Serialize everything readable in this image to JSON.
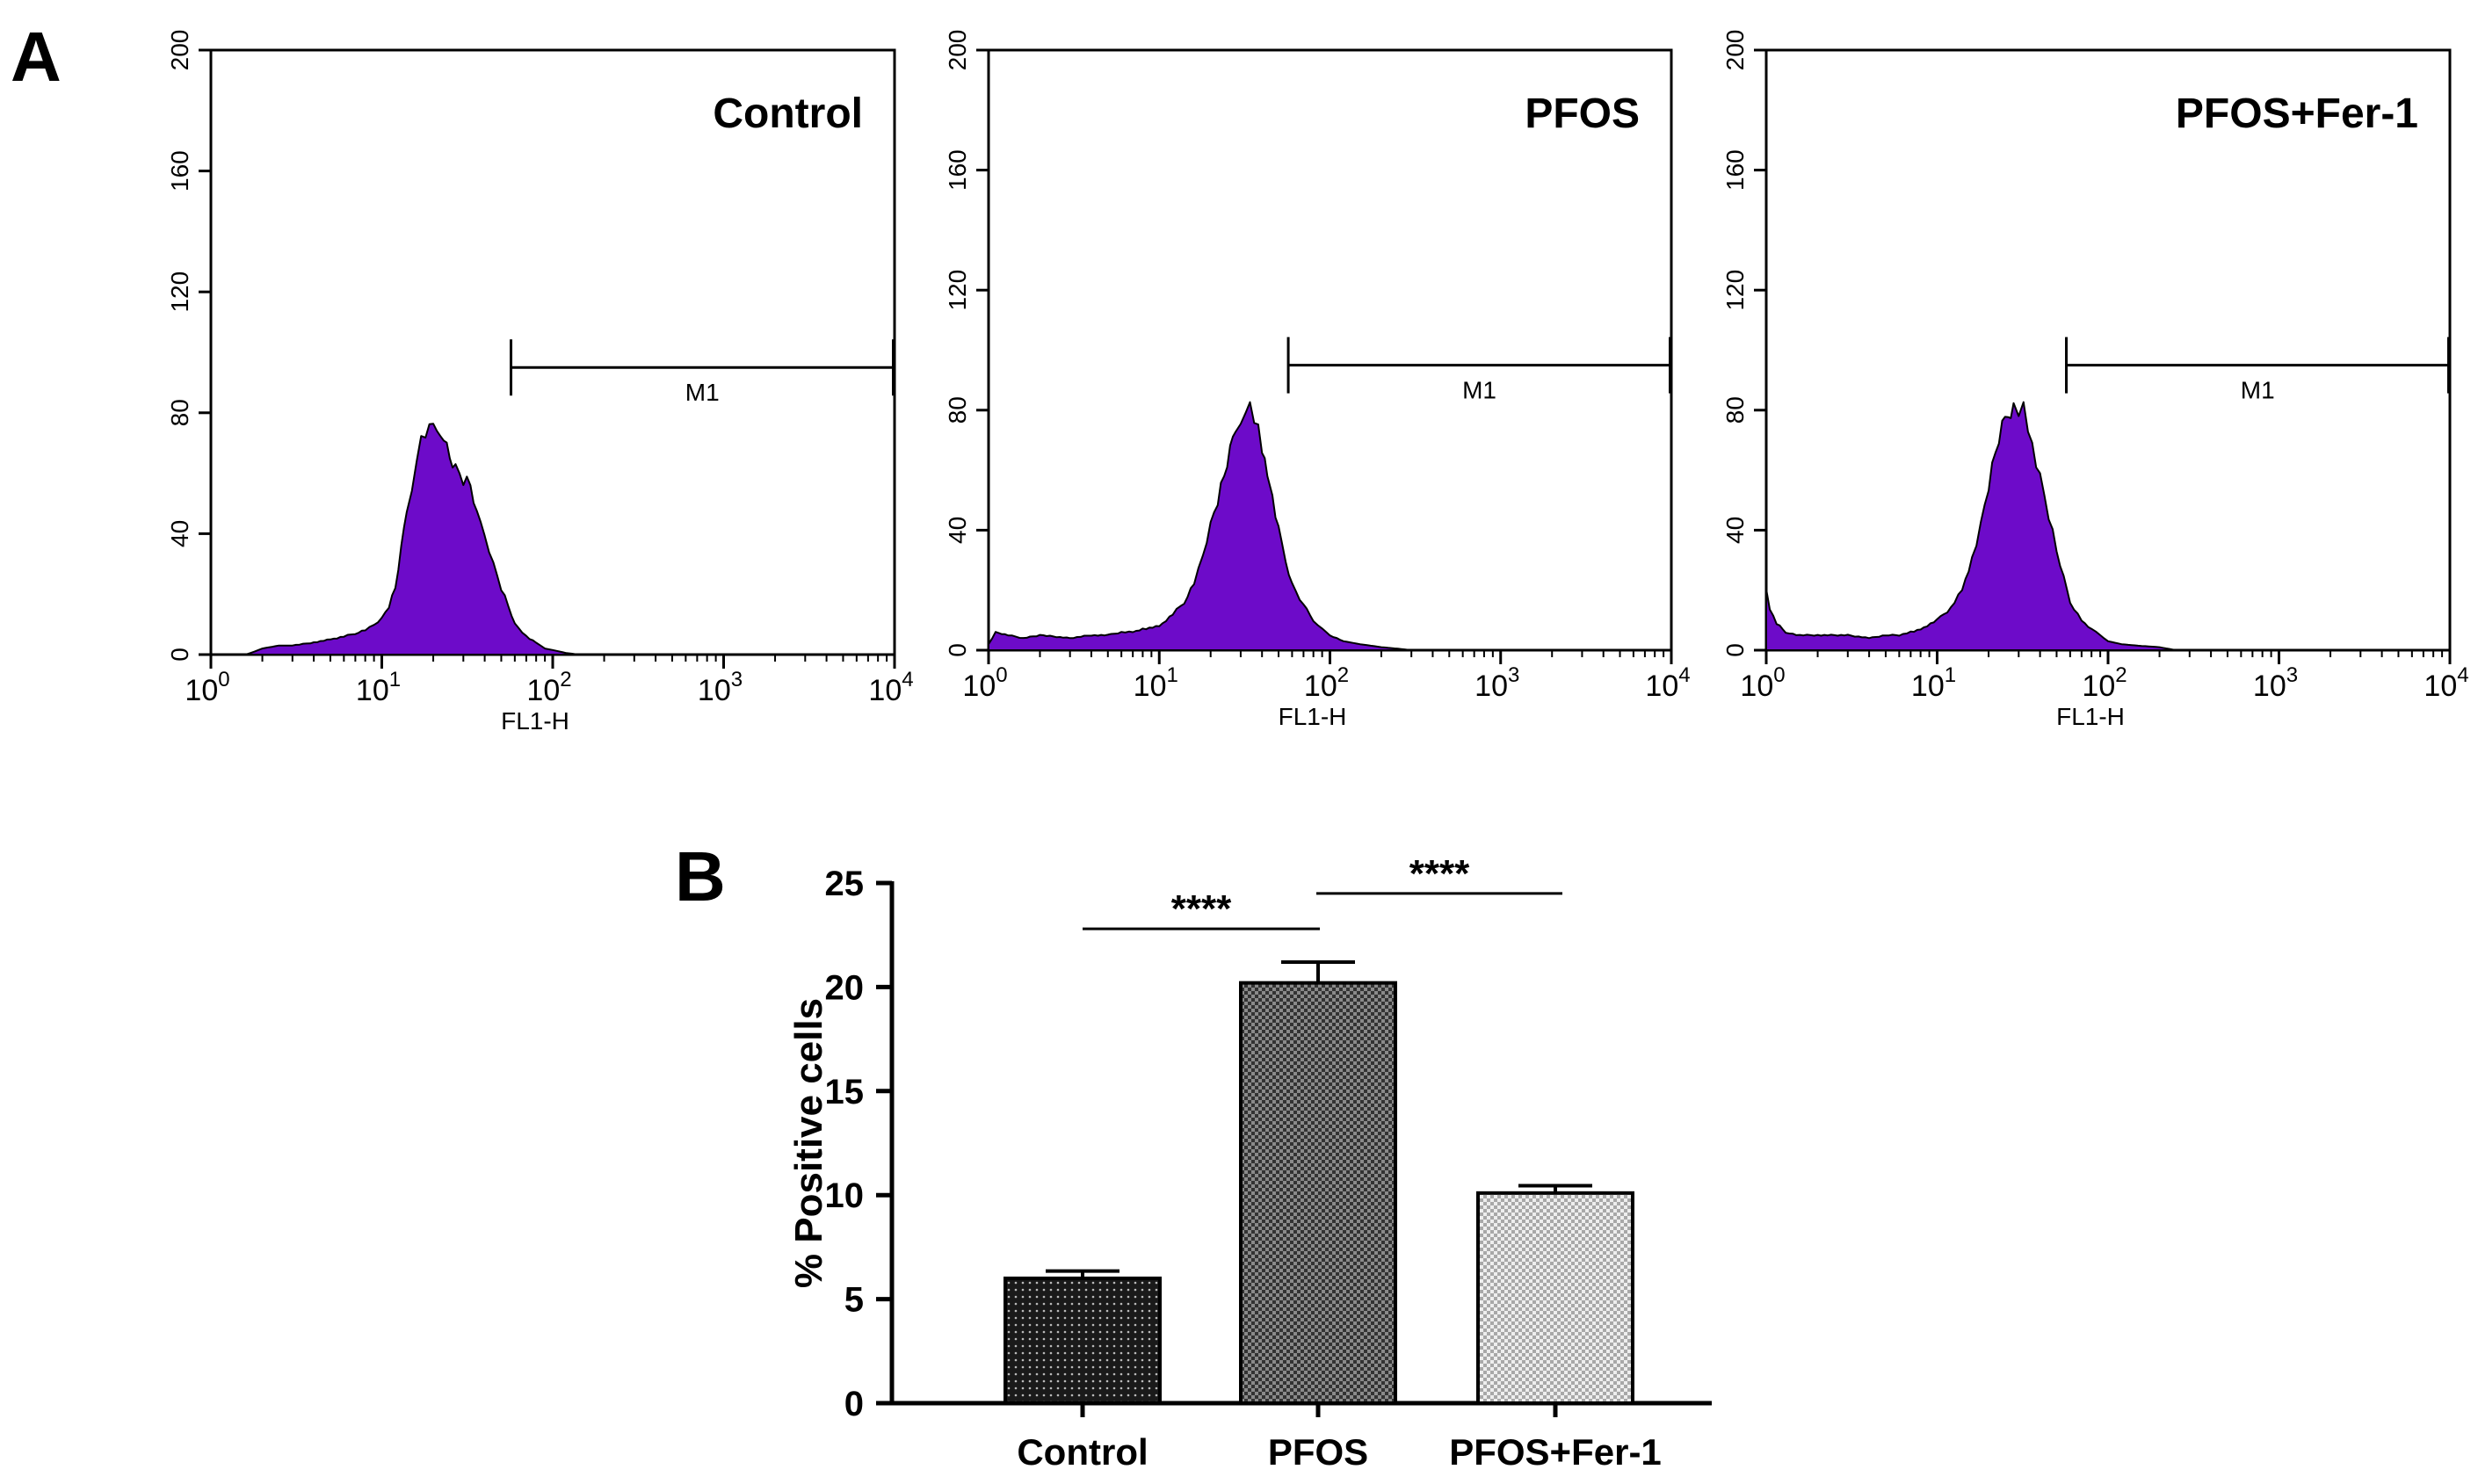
{
  "figure": {
    "panel_a_label": "A",
    "panel_b_label": "B"
  },
  "colors": {
    "histogram_fill": "#6d0bc9",
    "histogram_edge": "#000000",
    "axis": "#000000",
    "background": "#ffffff",
    "bar_control": "#1a1a1a",
    "bar_pfos": "#555555",
    "bar_fer1": "#d6d6d6"
  },
  "chart_data": [
    {
      "type": "area",
      "title": "Control",
      "xlabel": "FL1-H",
      "ylabel": "",
      "x_scale": "log",
      "xlim": [
        1,
        10000
      ],
      "ylim": [
        0,
        200
      ],
      "x_ticks": [
        {
          "base": "10",
          "exp": "0"
        },
        {
          "base": "10",
          "exp": "1"
        },
        {
          "base": "10",
          "exp": "2"
        },
        {
          "base": "10",
          "exp": "3"
        },
        {
          "base": "10",
          "exp": "4"
        }
      ],
      "y_ticks": [
        "0",
        "40",
        "80",
        "120",
        "160",
        "200"
      ],
      "gate": {
        "label": "M1",
        "start": 57,
        "end": 10000,
        "level": 95
      },
      "histogram": {
        "x": [
          1.6,
          1.8,
          2,
          2.5,
          3,
          4,
          5,
          6,
          7,
          8,
          9,
          10,
          11,
          12,
          13,
          14,
          15,
          16,
          17,
          18,
          19,
          20,
          21,
          22,
          23,
          25,
          27,
          30,
          33,
          36,
          40,
          45,
          50,
          55,
          60,
          70,
          80,
          90,
          100,
          110,
          120,
          130,
          140,
          150,
          170,
          200,
          300,
          500,
          1000,
          10000
        ],
        "counts": [
          0,
          1,
          2,
          3,
          3,
          4,
          5,
          6,
          7,
          8,
          10,
          12,
          16,
          22,
          35,
          48,
          56,
          64,
          70,
          73,
          75,
          79,
          74,
          70,
          72,
          66,
          62,
          58,
          56,
          46,
          40,
          30,
          22,
          16,
          10,
          6,
          4,
          2,
          1.5,
          1,
          0.5,
          0.3,
          0,
          0,
          0,
          0,
          0,
          0,
          0,
          0
        ]
      }
    },
    {
      "type": "area",
      "title": "PFOS",
      "xlabel": "FL1-H",
      "ylabel": "",
      "x_scale": "log",
      "xlim": [
        1,
        10000
      ],
      "ylim": [
        0,
        200
      ],
      "x_ticks": [
        {
          "base": "10",
          "exp": "0"
        },
        {
          "base": "10",
          "exp": "1"
        },
        {
          "base": "10",
          "exp": "2"
        },
        {
          "base": "10",
          "exp": "3"
        },
        {
          "base": "10",
          "exp": "4"
        }
      ],
      "y_ticks": [
        "0",
        "40",
        "80",
        "120",
        "160",
        "200"
      ],
      "gate": {
        "label": "M1",
        "start": 57,
        "end": 10000,
        "level": 95
      },
      "histogram": {
        "x": [
          1,
          1.1,
          1.3,
          1.6,
          2,
          3,
          4,
          5,
          6,
          7,
          8,
          10,
          12,
          14,
          16,
          18,
          20,
          22,
          24,
          26,
          28,
          30,
          32,
          34,
          36,
          38,
          40,
          43,
          46,
          50,
          55,
          60,
          70,
          80,
          90,
          100,
          120,
          150,
          200,
          250,
          300,
          500,
          10000
        ],
        "counts": [
          2,
          6,
          5,
          4,
          5,
          4,
          5,
          5,
          6,
          6,
          7,
          8,
          12,
          16,
          22,
          32,
          42,
          50,
          58,
          66,
          74,
          78,
          79,
          80,
          77,
          74,
          68,
          60,
          50,
          40,
          30,
          22,
          15,
          10,
          7,
          5,
          3,
          2,
          1,
          0.5,
          0,
          0,
          0
        ]
      }
    },
    {
      "type": "area",
      "title": "PFOS+Fer-1",
      "xlabel": "FL1-H",
      "ylabel": "",
      "x_scale": "log",
      "xlim": [
        1,
        10000
      ],
      "ylim": [
        0,
        200
      ],
      "x_ticks": [
        {
          "base": "10",
          "exp": "0"
        },
        {
          "base": "10",
          "exp": "1"
        },
        {
          "base": "10",
          "exp": "2"
        },
        {
          "base": "10",
          "exp": "3"
        },
        {
          "base": "10",
          "exp": "4"
        }
      ],
      "y_ticks": [
        "0",
        "40",
        "80",
        "120",
        "160",
        "200"
      ],
      "gate": {
        "label": "M1",
        "start": 57,
        "end": 10000,
        "level": 95
      },
      "histogram": {
        "x": [
          1,
          1.05,
          1.15,
          1.3,
          1.5,
          2,
          3,
          4,
          5,
          6,
          7,
          8,
          10,
          12,
          14,
          16,
          18,
          20,
          22,
          24,
          26,
          28,
          30,
          32,
          34,
          36,
          40,
          45,
          50,
          55,
          60,
          70,
          80,
          90,
          100,
          120,
          150,
          200,
          250,
          500,
          10000
        ],
        "counts": [
          20,
          14,
          9,
          6,
          5,
          5,
          5,
          4,
          5,
          5,
          6,
          7,
          10,
          14,
          20,
          30,
          42,
          55,
          66,
          74,
          79,
          81,
          78,
          80,
          74,
          68,
          58,
          45,
          33,
          24,
          16,
          10,
          7,
          5,
          3,
          2,
          1.5,
          1,
          0,
          0,
          0
        ]
      }
    },
    {
      "type": "bar",
      "title": "",
      "xlabel": "",
      "ylabel": "% Positive cells",
      "categories": [
        "Control",
        "PFOS",
        "PFOS+Fer-1"
      ],
      "values": [
        6.0,
        20.2,
        10.1
      ],
      "errors": [
        0.35,
        1.0,
        0.35
      ],
      "ylim": [
        0,
        25
      ],
      "y_ticks": [
        "0",
        "5",
        "10",
        "15",
        "20",
        "25"
      ],
      "significance": [
        {
          "from": 0,
          "to": 1,
          "label": "****",
          "level": 22.8
        },
        {
          "from": 1,
          "to": 2,
          "label": "****",
          "level": 24.5
        }
      ]
    }
  ]
}
